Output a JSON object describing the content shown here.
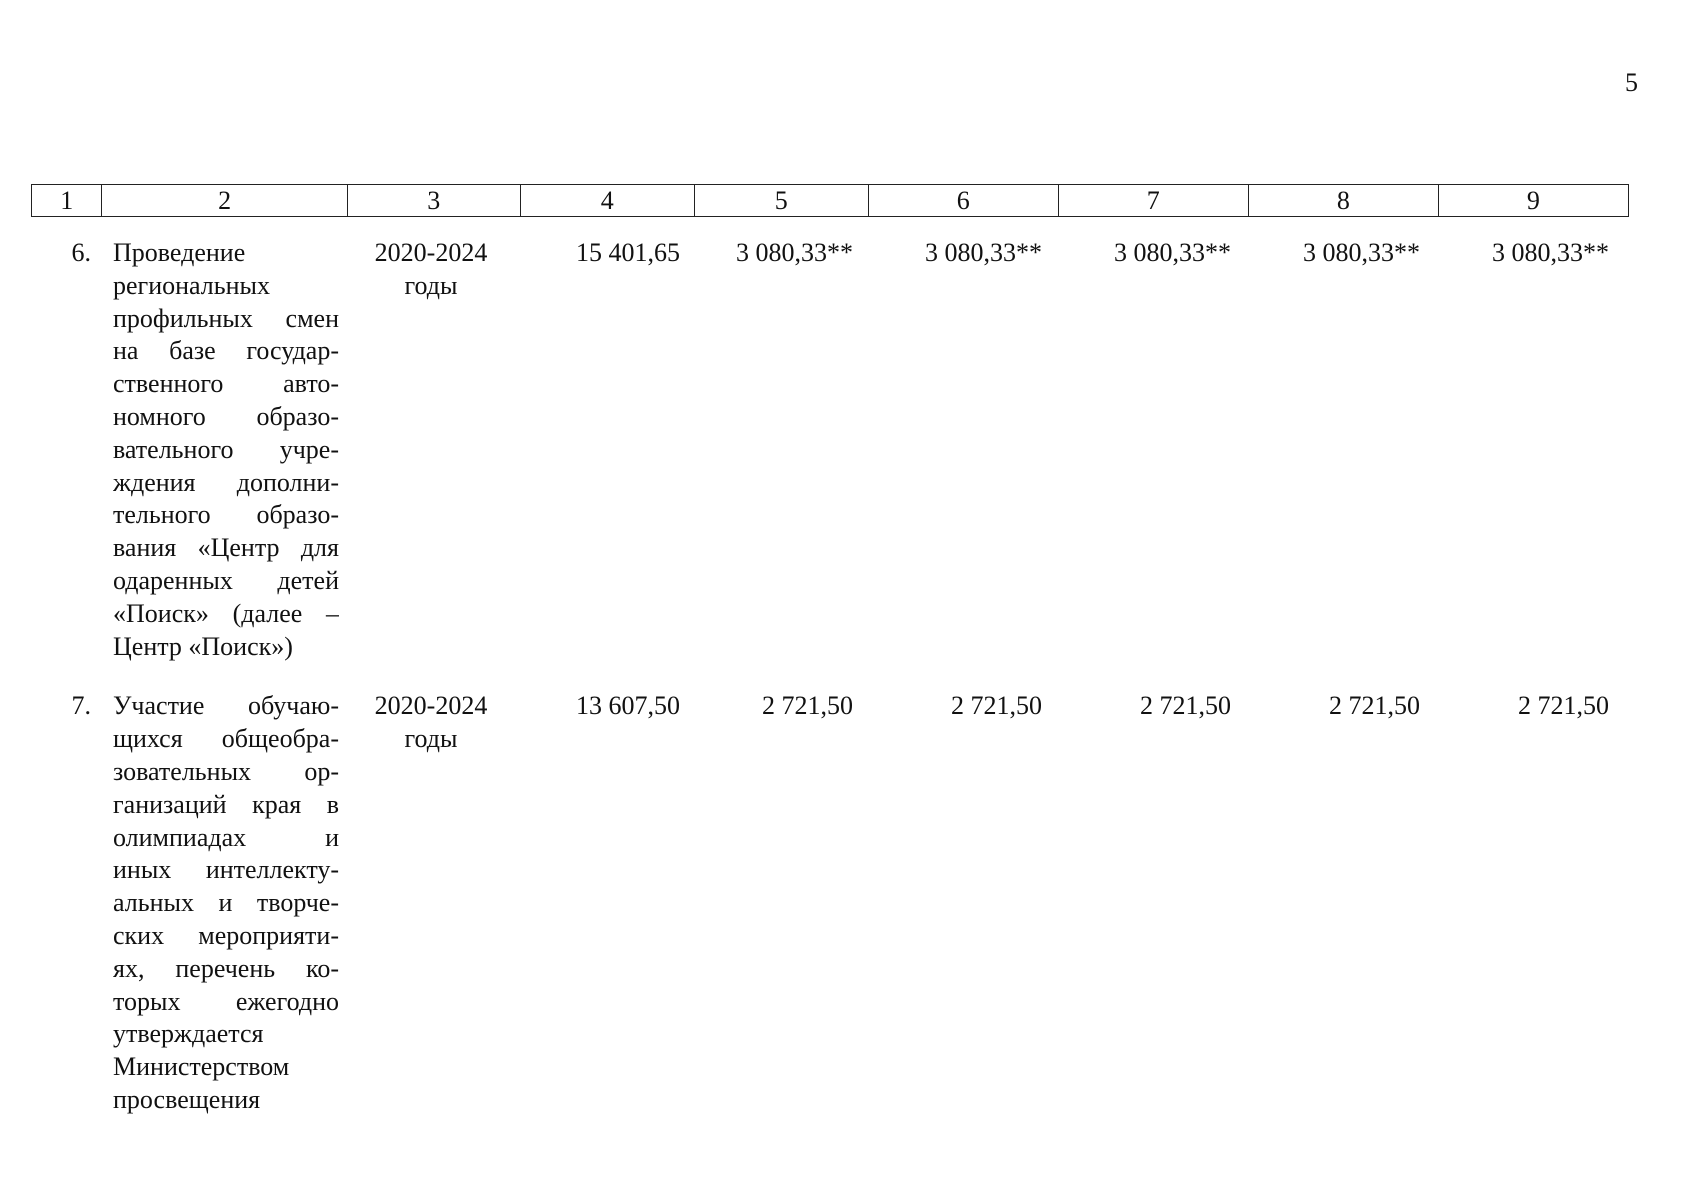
{
  "page_number": "5",
  "header": [
    "1",
    "2",
    "3",
    "4",
    "5",
    "6",
    "7",
    "8",
    "9"
  ],
  "rows": [
    {
      "num": "6.",
      "name_lines": [
        "Проведение",
        "региональных",
        "профильных смен",
        "на базе государ-",
        "ственного авто-",
        "номного образо-",
        "вательного учре-",
        "ждения дополни-",
        "тельного образо-",
        "вания «Центр для",
        "одаренных детей",
        "«Поиск» (далее –",
        "Центр «Поиск»)"
      ],
      "years_line1": "2020-2024",
      "years_line2": "годы",
      "total": "15 401,65",
      "v5": "3 080,33**",
      "v6": "3 080,33**",
      "v7": "3 080,33**",
      "v8": "3 080,33**",
      "v9": "3 080,33**"
    },
    {
      "num": "7.",
      "name_lines": [
        "Участие обучаю-",
        "щихся общеобра-",
        "зовательных ор-",
        "ганизаций края в",
        "олимпиадах и",
        "иных интеллекту-",
        "альных и творче-",
        "ских мероприяти-",
        "ях, перечень ко-",
        "торых ежегодно",
        "утверждается",
        "Министерством",
        "просвещения"
      ],
      "years_line1": "2020-2024",
      "years_line2": "годы",
      "total": "13 607,50",
      "v5": "2 721,50",
      "v6": "2 721,50",
      "v7": "2 721,50",
      "v8": "2 721,50",
      "v9": "2 721,50"
    }
  ]
}
